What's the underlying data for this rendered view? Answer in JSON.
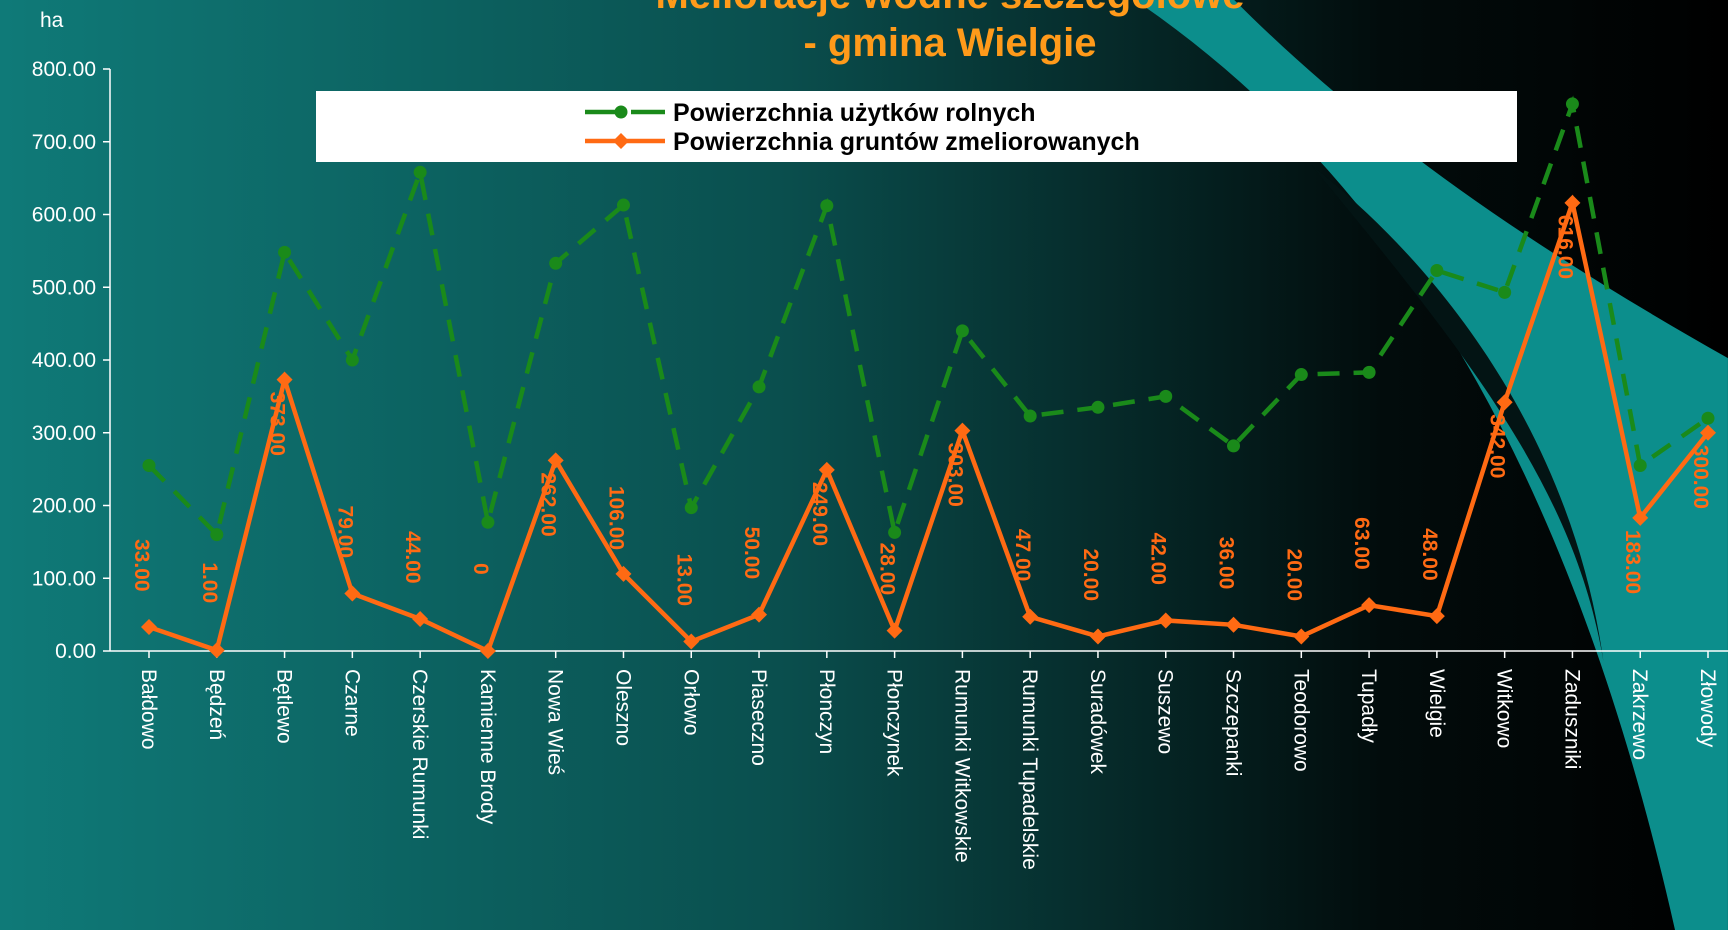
{
  "chart_data": {
    "type": "line",
    "title": "Melioracje wodne szczegółowe",
    "subtitle": "- gmina Wielgie",
    "y_label": "ha",
    "categories": [
      "Bałdowo",
      "Będzeń",
      "Bętlewo",
      "Czarne",
      "Czerskie Rumunki",
      "Kamienne Brody",
      "Nowa Wieś",
      "Oleszno",
      "Orłowo",
      "Piaseczno",
      "Płonczyn",
      "Płonczynek",
      "Rumunki  Witkowskie",
      "Rumunki Tupadelskie",
      "Suradówek",
      "Suszewo",
      "Szczepanki",
      "Teodorowo",
      "Tupadły",
      "Wielgie",
      "Witkowo",
      "Zaduszniki",
      "Zakrzewo",
      "Złowody"
    ],
    "series": [
      {
        "name": "Powierzchnia użytków rolnych",
        "color": "#1a8a1a",
        "dashed": true,
        "marker": "circle",
        "values": [
          255,
          160,
          548,
          400,
          658,
          177,
          533,
          613,
          197,
          363,
          612,
          163,
          440,
          323,
          335,
          350,
          282,
          380,
          383,
          523,
          493,
          752,
          255,
          320
        ]
      },
      {
        "name": "Powierzchnia gruntów zmeliorowanych",
        "color": "#ff6a13",
        "dashed": false,
        "marker": "diamond",
        "values": [
          33,
          1,
          373,
          79,
          44,
          0,
          262,
          106,
          13,
          50,
          249,
          28,
          303,
          47,
          20,
          42,
          36,
          20,
          63,
          48,
          342,
          616,
          183,
          300
        ],
        "value_labels": [
          "33.00",
          "1.00",
          "373.00",
          "79.00",
          "44.00",
          "0",
          "262.00",
          "106.00",
          "13.00",
          "50.00",
          "249.00",
          "28.00",
          "303.00",
          "47.00",
          "20.00",
          "42.00",
          "36.00",
          "20.00",
          "63.00",
          "48.00",
          "342.00",
          "616.00",
          "183.00",
          "300.00"
        ]
      }
    ],
    "ylim": [
      0,
      800
    ],
    "yticks": [
      {
        "value": 0,
        "label": "0.00"
      },
      {
        "value": 100,
        "label": "100.00"
      },
      {
        "value": 200,
        "label": "200.00"
      },
      {
        "value": 300,
        "label": "300.00"
      },
      {
        "value": 400,
        "label": "400.00"
      },
      {
        "value": 500,
        "label": "500.00"
      },
      {
        "value": 600,
        "label": "600.00"
      },
      {
        "value": 700,
        "label": "700.00"
      },
      {
        "value": 800,
        "label": "800.00"
      }
    ],
    "legend": "top"
  }
}
